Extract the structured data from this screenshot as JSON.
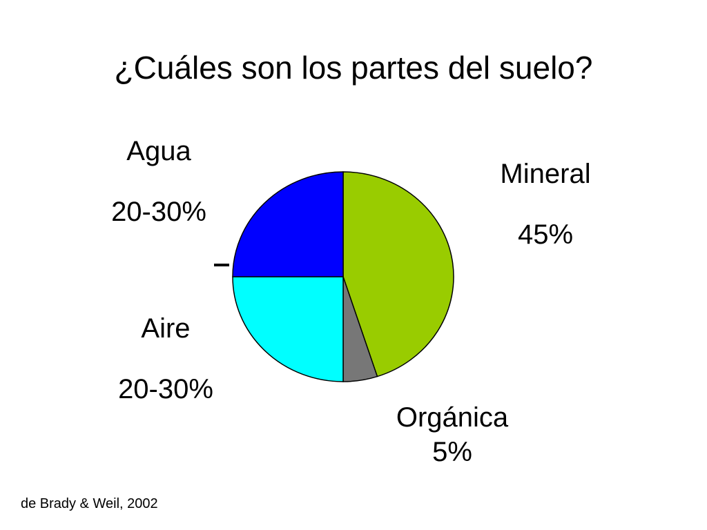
{
  "title": "¿Cuáles son los partes del suelo?",
  "source": "de Brady & Weil, 2002",
  "chart_data": {
    "type": "pie",
    "title": "¿Cuáles son los partes del suelo?",
    "slices": [
      {
        "label": "Mineral",
        "value_label": "45%",
        "value": 45,
        "color": "#99cc00"
      },
      {
        "label": "Orgánica",
        "value_label": "5%",
        "value": 5,
        "color": "#777777"
      },
      {
        "label": "Aire",
        "value_label": "20-30%",
        "value": 25,
        "color": "#00ffff"
      },
      {
        "label": "Agua",
        "value_label": "20-30%",
        "value": 25,
        "color": "#0000ff"
      }
    ],
    "start": "12 o'clock, clockwise",
    "legend": "none"
  }
}
